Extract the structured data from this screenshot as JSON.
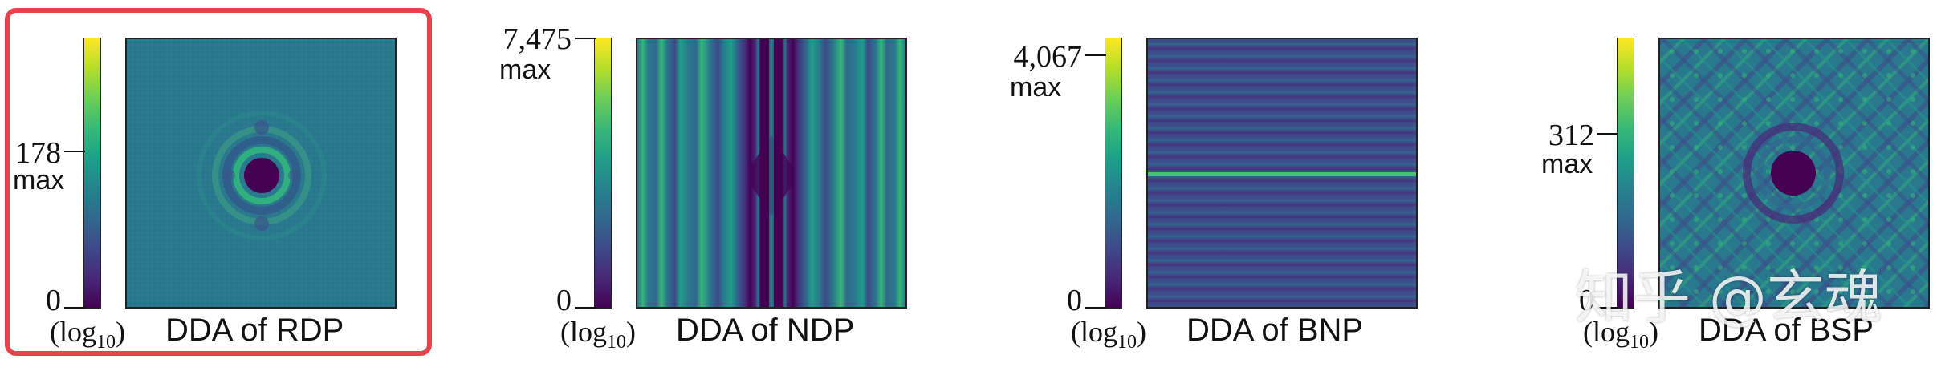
{
  "colormap": [
    "#440154",
    "#3e4989",
    "#26828e",
    "#35b779",
    "#fde725"
  ],
  "panels": [
    {
      "caption": "DDA of RDP",
      "tick_top": "178",
      "tick_bottom": "0",
      "max_label": "max",
      "log_label": "(log",
      "log_sub": "10",
      "log_close": ")",
      "pattern": "radial-rings"
    },
    {
      "caption": "DDA of NDP",
      "tick_top": "7,475",
      "tick_bottom": "0",
      "max_label": "max",
      "log_label": "(log",
      "log_sub": "10",
      "log_close": ")",
      "pattern": "vertical-stripes"
    },
    {
      "caption": "DDA of BNP",
      "tick_top": "4,067",
      "tick_bottom": "0",
      "max_label": "max",
      "log_label": "(log",
      "log_sub": "10",
      "log_close": ")",
      "pattern": "horizontal-line"
    },
    {
      "caption": "DDA of BSP",
      "tick_top": "312",
      "tick_bottom": "0",
      "max_label": "max",
      "log_label": "(log",
      "log_sub": "10",
      "log_close": ")",
      "pattern": "grid-spots"
    }
  ],
  "watermark": "知乎 @玄魂"
}
